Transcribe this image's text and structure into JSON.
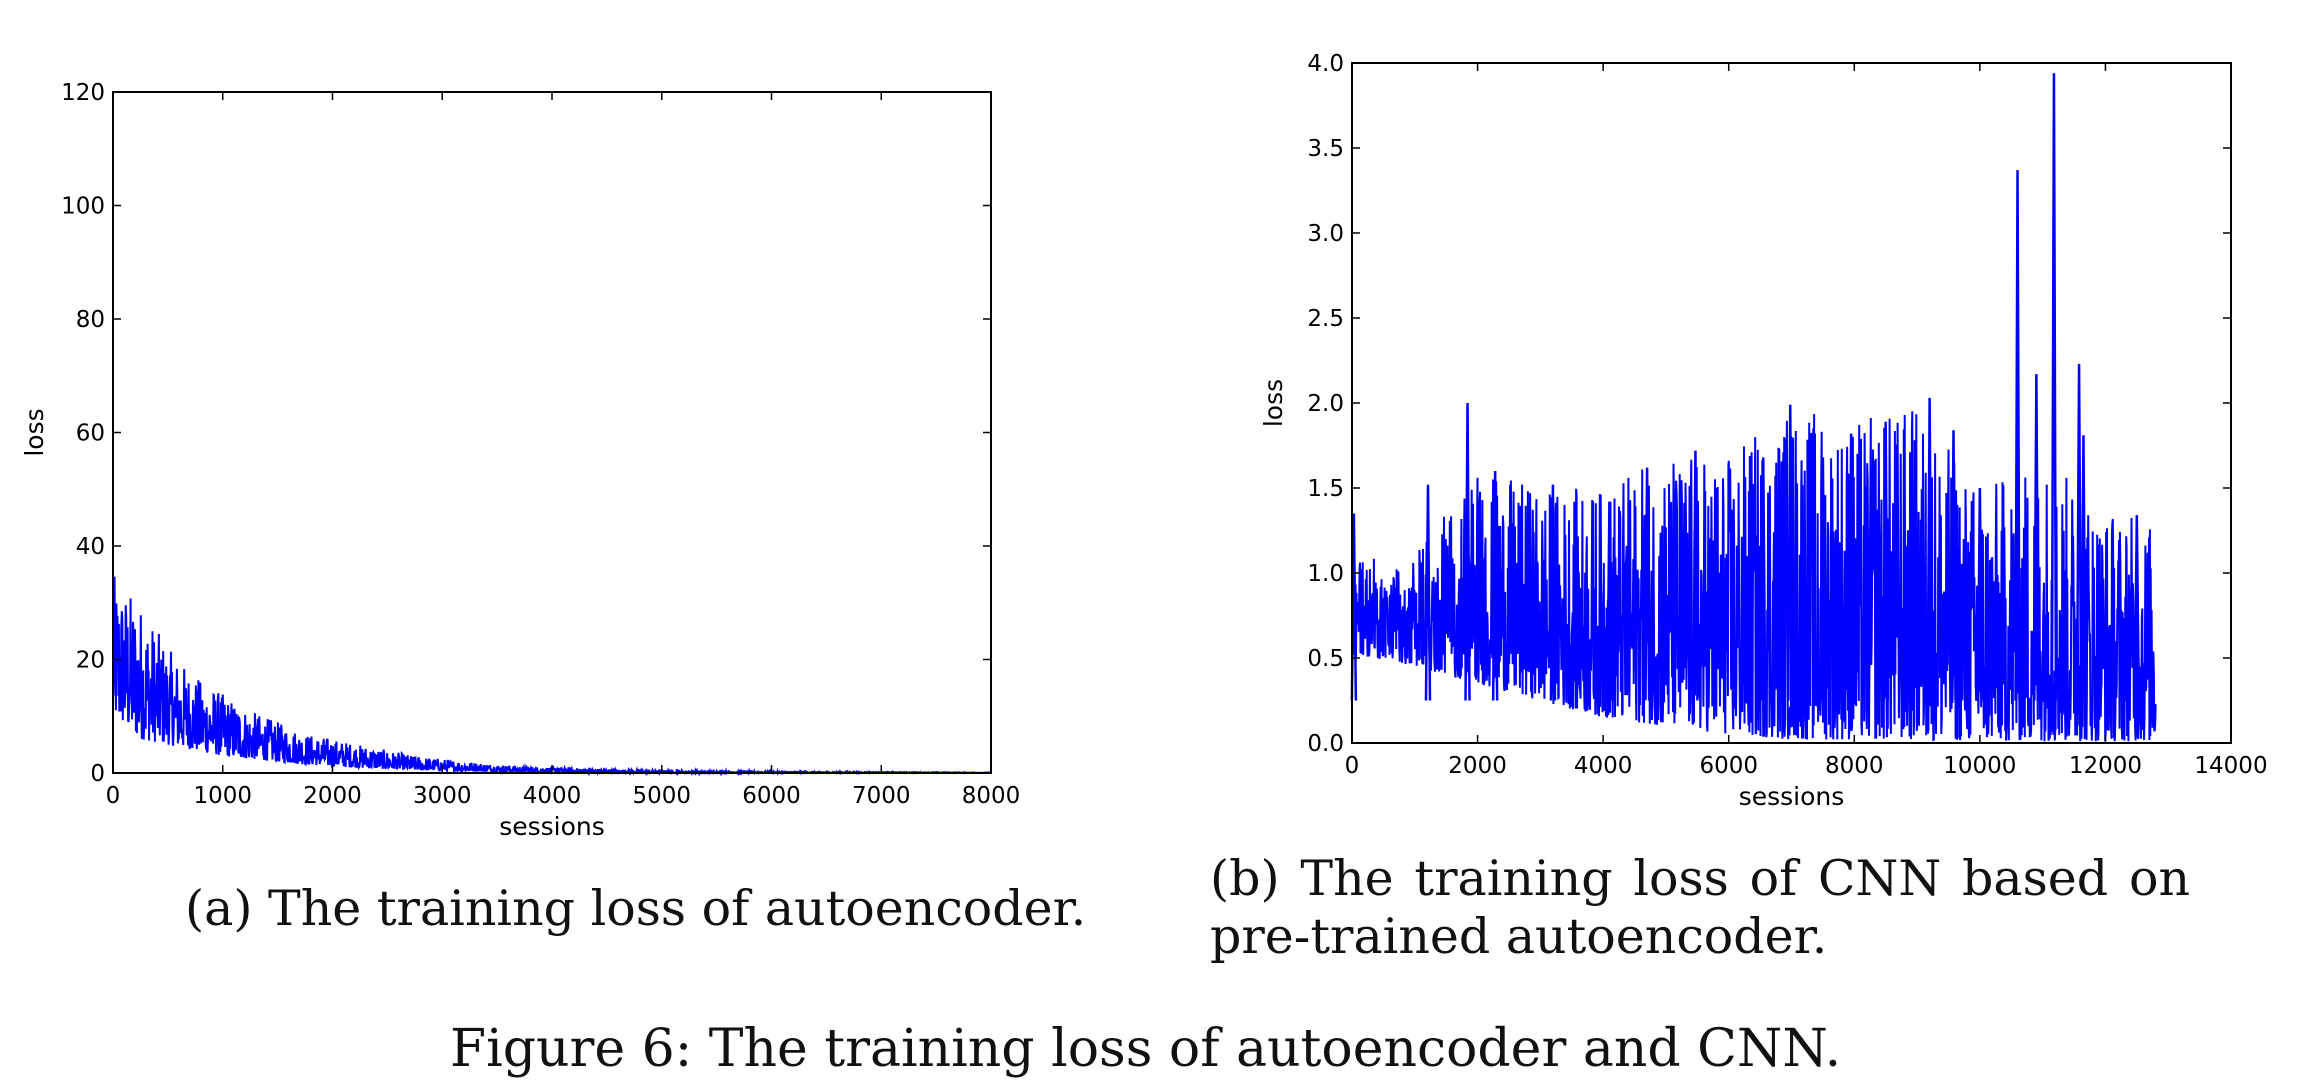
{
  "figure_caption": "Figure 6: The training loss of autoencoder and CNN.",
  "subcaptions": {
    "a": "(a) The training loss of autoencoder.",
    "b": "(b) The training loss of CNN based on pre-trained autoencoder."
  },
  "series_color": "#0000ff",
  "chart_data": [
    {
      "type": "line",
      "id": "a",
      "xlabel": "sessions",
      "ylabel": "loss",
      "xlim": [
        0,
        8000
      ],
      "ylim": [
        0,
        120
      ],
      "xticks": [
        0,
        1000,
        2000,
        3000,
        4000,
        5000,
        6000,
        7000,
        8000
      ],
      "yticks": [
        0,
        20,
        40,
        60,
        80,
        100,
        120
      ],
      "grid": false,
      "legend": "none",
      "series": [
        {
          "color": "#0000ff",
          "x": [
            0,
            250,
            500,
            750,
            1000,
            1250,
            1500,
            1750,
            2000,
            2250,
            2500,
            2750,
            3000,
            3250,
            3500,
            3750,
            4000,
            4500,
            5000,
            5500,
            6000,
            7000,
            8000
          ],
          "y_min": [
            10,
            6,
            5,
            4,
            3,
            2.5,
            2,
            1.5,
            1.2,
            0.9,
            0.7,
            0.5,
            0.4,
            0.3,
            0.2,
            0.15,
            0.1,
            0.05,
            0.02,
            0.01,
            0.01,
            0.01,
            0.01
          ],
          "y_max": [
            35,
            30,
            22,
            17,
            14,
            11,
            9,
            7,
            6,
            5,
            4,
            3,
            2.5,
            2,
            1.5,
            1.2,
            1,
            0.7,
            0.5,
            0.4,
            0.3,
            0.2,
            0.1
          ]
        }
      ]
    },
    {
      "type": "line",
      "id": "b",
      "xlabel": "sessions",
      "ylabel": "loss",
      "xlim": [
        0,
        14000
      ],
      "ylim": [
        0,
        4.0
      ],
      "xticks": [
        0,
        2000,
        4000,
        6000,
        8000,
        10000,
        12000,
        14000
      ],
      "yticks": [
        0.0,
        0.5,
        1.0,
        1.5,
        2.0,
        2.5,
        3.0,
        3.5,
        4.0
      ],
      "ytick_format": 1,
      "grid": false,
      "legend": "none",
      "series": [
        {
          "color": "#0000ff",
          "x_end": 12800,
          "x": [
            0,
            500,
            1000,
            2000,
            3000,
            4000,
            5000,
            6000,
            7000,
            8000,
            9000,
            10000,
            11000,
            12000,
            12800
          ],
          "y_min": [
            0.5,
            0.5,
            0.45,
            0.35,
            0.25,
            0.15,
            0.1,
            0.05,
            0.02,
            0.02,
            0.02,
            0.01,
            0.01,
            0.01,
            0.01
          ],
          "y_max": [
            1.35,
            1.0,
            1.1,
            1.6,
            1.5,
            1.5,
            1.7,
            1.7,
            2.0,
            1.9,
            2.0,
            1.5,
            1.7,
            1.4,
            1.3
          ],
          "spikes": [
            [
              30,
              1.35
            ],
            [
              1210,
              1.52
            ],
            [
              1840,
              2.0
            ],
            [
              2280,
              1.6
            ],
            [
              3200,
              1.52
            ],
            [
              4100,
              1.42
            ],
            [
              4700,
              1.62
            ],
            [
              5470,
              1.72
            ],
            [
              6550,
              1.68
            ],
            [
              6980,
              1.99
            ],
            [
              7500,
              1.68
            ],
            [
              7950,
              1.82
            ],
            [
              8500,
              1.89
            ],
            [
              9200,
              2.03
            ],
            [
              9580,
              1.84
            ],
            [
              10000,
              1.5
            ],
            [
              10600,
              3.37
            ],
            [
              10900,
              2.17
            ],
            [
              11180,
              3.94
            ],
            [
              11580,
              2.23
            ],
            [
              11650,
              1.81
            ],
            [
              12500,
              1.34
            ]
          ]
        }
      ]
    }
  ]
}
